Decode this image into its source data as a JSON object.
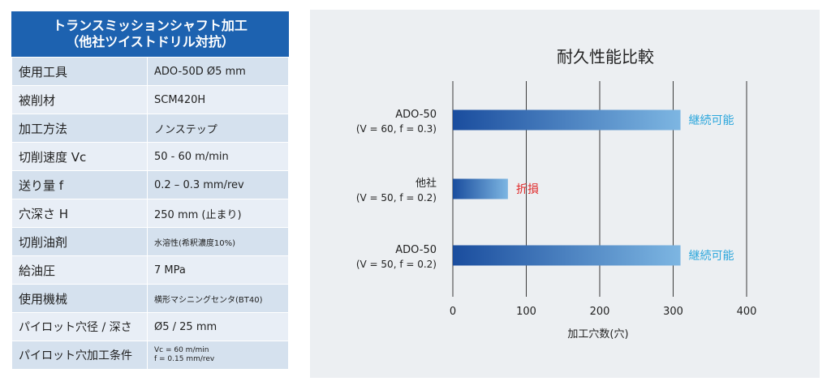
{
  "table": {
    "title_line1": "トランスミッションシャフト加工",
    "title_line2": "（他社ツイストドリル対抗）",
    "rows": [
      {
        "label": "使用工具",
        "value": "ADO-50D Ø5 mm"
      },
      {
        "label": "被削材",
        "value": "SCM420H"
      },
      {
        "label": "加工方法",
        "value": "ノンステップ"
      },
      {
        "label": "切削速度 Vc",
        "value": "50 - 60 m/min"
      },
      {
        "label": "送り量 f",
        "value": "0.2 – 0.3 mm/rev"
      },
      {
        "label": "穴深さ H",
        "value": "250 mm (止まり)"
      },
      {
        "label": "切削油剤",
        "value": "水溶性(希釈濃度10%)"
      },
      {
        "label": "給油圧",
        "value": "7 MPa"
      },
      {
        "label": "使用機械",
        "value": "横形マシニングセンタ(BT40)"
      },
      {
        "label": "パイロット穴径 / 深さ",
        "value": "Ø5 / 25 mm"
      },
      {
        "label": "パイロット穴加工条件",
        "value_line1": "Vc = 60 m/min",
        "value_line2": "f = 0.15 mm/rev"
      }
    ]
  },
  "colors": {
    "header_blue": "#1d62b0",
    "bar_dark": "#1a4d9e",
    "bar_light": "#7db6e2",
    "continue_text": "#2aa6dc",
    "broken_text": "#e02828"
  },
  "chart_data": {
    "type": "bar",
    "orientation": "horizontal",
    "title": "耐久性能比較",
    "xlabel": "加工穴数(穴)",
    "xlim": [
      0,
      400
    ],
    "xticks": [
      0,
      100,
      200,
      300,
      400
    ],
    "grid": true,
    "bars": [
      {
        "label_line1": "ADO-50",
        "label_line2": "(V = 60, f = 0.3)",
        "value": 310,
        "annotation": "継続可能",
        "status": "continue"
      },
      {
        "label_line1": "他社",
        "label_line2": "(V = 50, f = 0.2)",
        "value": 75,
        "annotation": "折損",
        "status": "broken"
      },
      {
        "label_line1": "ADO-50",
        "label_line2": "(V = 50, f = 0.2)",
        "value": 310,
        "annotation": "継続可能",
        "status": "continue"
      }
    ]
  }
}
